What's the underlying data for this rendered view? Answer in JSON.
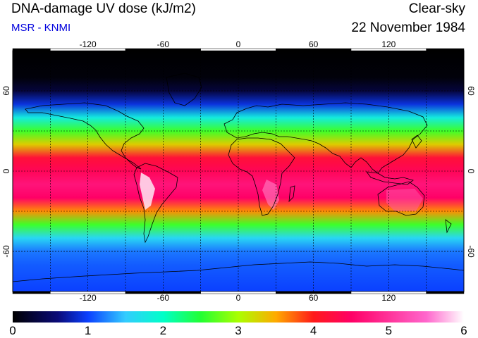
{
  "header": {
    "title": "DNA-damage UV dose (kJ/m2)",
    "source": "MSR - KNMI",
    "condition": "Clear-sky",
    "date": "22 November 1984"
  },
  "colors": {
    "source_text": "#0000dd",
    "coastline": "#000000",
    "grid": "#000000"
  },
  "map": {
    "projection": "equirectangular",
    "lon_range": [
      -180,
      180
    ],
    "lat_range": [
      -90,
      90
    ],
    "lon_ticks": [
      -120,
      -60,
      0,
      60,
      120
    ],
    "lon_tick_labels": [
      "-120",
      "-60",
      "0",
      "60",
      "120"
    ],
    "lat_ticks": [
      60,
      0,
      -60
    ],
    "lat_tick_labels": [
      "60",
      "0",
      "-60"
    ],
    "gridlines_lon": [
      -150,
      -90,
      -30,
      30,
      90,
      150
    ],
    "gridlines_lat": [
      30,
      -30,
      -60
    ]
  },
  "colorbar": {
    "min": 0,
    "max": 6,
    "tick_labels": [
      "0",
      "1",
      "2",
      "3",
      "4",
      "5",
      "6"
    ],
    "stops": [
      {
        "value": 0,
        "color": "#000000"
      },
      {
        "value": 0.6,
        "color": "#0a0a78"
      },
      {
        "value": 1.0,
        "color": "#0b40ff"
      },
      {
        "value": 1.5,
        "color": "#33ccff"
      },
      {
        "value": 2.0,
        "color": "#00ffc8"
      },
      {
        "value": 2.5,
        "color": "#22ff33"
      },
      {
        "value": 3.0,
        "color": "#aaff00"
      },
      {
        "value": 3.5,
        "color": "#ffaa00"
      },
      {
        "value": 4.0,
        "color": "#ff1a1a"
      },
      {
        "value": 4.5,
        "color": "#ff0066"
      },
      {
        "value": 5.0,
        "color": "#ff3399"
      },
      {
        "value": 5.5,
        "color": "#ff66cc"
      },
      {
        "value": 6.0,
        "color": "#ffffff"
      }
    ]
  },
  "uv_profile": {
    "latitudes": [
      90,
      70,
      60,
      50,
      40,
      30,
      20,
      10,
      0,
      -10,
      -20,
      -30,
      -40,
      -50,
      -60,
      -70,
      -90
    ],
    "dose": [
      0,
      0.05,
      0.3,
      0.9,
      1.8,
      2.6,
      3.3,
      4.2,
      4.4,
      4.7,
      4.5,
      3.6,
      2.6,
      1.6,
      1.2,
      1.1,
      1.0
    ]
  }
}
